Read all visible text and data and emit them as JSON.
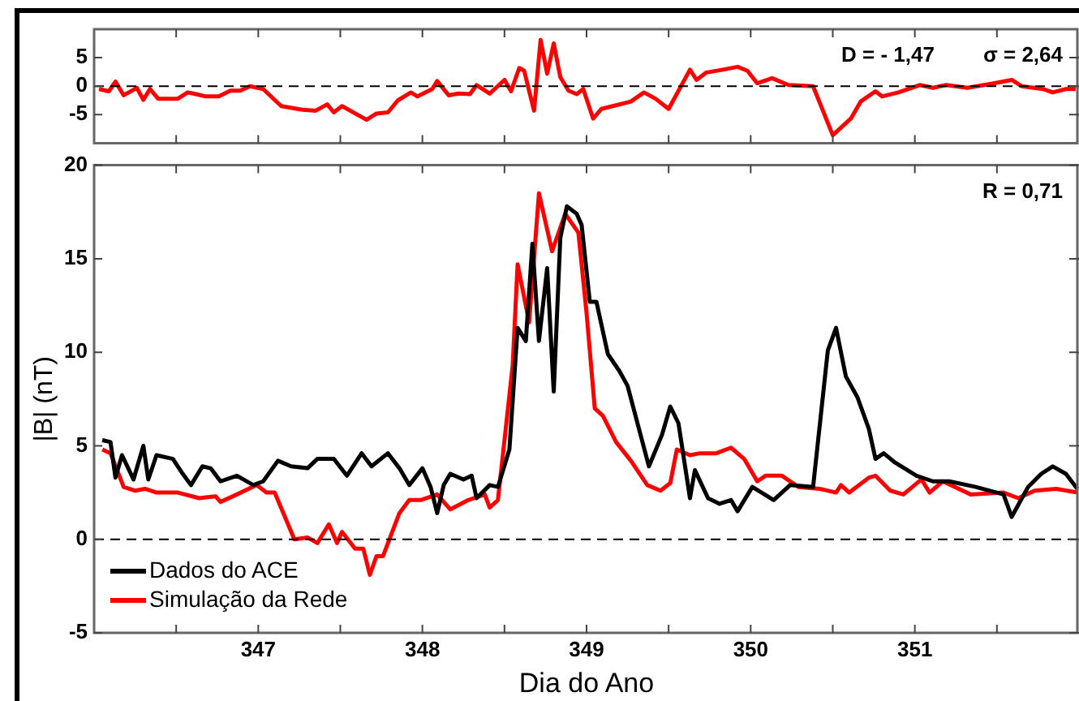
{
  "chart_data": [
    {
      "type": "line",
      "annotations": [
        "D = - 1,47",
        "σ = 2,64"
      ],
      "xlim": [
        346,
        352
      ],
      "xticks": [
        {
          "value": 346.5,
          "label": null
        },
        {
          "value": 347,
          "label": null
        },
        {
          "value": 347.5,
          "label": null
        },
        {
          "value": 348,
          "label": null
        },
        {
          "value": 348.5,
          "label": null
        },
        {
          "value": 349,
          "label": null
        },
        {
          "value": 349.5,
          "label": null
        },
        {
          "value": 350,
          "label": null
        },
        {
          "value": 350.5,
          "label": null
        },
        {
          "value": 351,
          "label": null
        },
        {
          "value": 351.5,
          "label": null
        }
      ],
      "ylim": [
        -10,
        10
      ],
      "yticks": [
        -5,
        0,
        5
      ],
      "tick_labels": "y",
      "grid": false,
      "legend": false,
      "marker": "none",
      "line_style": "solid",
      "ref_lines": [
        {
          "axis": "y",
          "value": 0,
          "color": "#000000",
          "line_style": "dashed"
        }
      ],
      "series": [
        {
          "color": "#ff0000",
          "x": [
            346.03,
            346.09,
            346.13,
            346.18,
            346.26,
            346.3,
            346.34,
            346.39,
            346.51,
            346.57,
            346.62,
            346.68,
            346.76,
            346.83,
            346.89,
            346.95,
            347.03,
            347.14,
            347.26,
            347.35,
            347.42,
            347.46,
            347.51,
            347.66,
            347.72,
            347.79,
            347.85,
            347.93,
            347.97,
            348.06,
            348.09,
            348.16,
            348.22,
            348.29,
            348.33,
            348.41,
            348.5,
            348.54,
            348.59,
            348.62,
            348.68,
            348.72,
            348.76,
            348.8,
            348.84,
            348.89,
            348.94,
            348.98,
            349.04,
            349.09,
            349.16,
            349.27,
            349.35,
            349.42,
            349.5,
            349.63,
            349.67,
            349.73,
            349.83,
            349.92,
            349.98,
            350.04,
            350.13,
            350.23,
            350.38,
            350.44,
            350.5,
            350.61,
            350.67,
            350.76,
            350.8,
            350.9,
            351.03,
            351.11,
            351.19,
            351.32,
            351.48,
            351.59,
            351.65,
            351.78,
            351.84,
            351.92,
            351.98
          ],
          "values": [
            -0.5,
            -0.9,
            0.8,
            -1.6,
            -0.3,
            -2.4,
            -0.5,
            -2.2,
            -2.2,
            -1.1,
            -1.4,
            -1.8,
            -1.8,
            -0.8,
            -0.8,
            0,
            -0.5,
            -3.5,
            -4.1,
            -4.3,
            -3.2,
            -4.6,
            -3.5,
            -5.9,
            -4.8,
            -4.6,
            -2.5,
            -1.1,
            -1.8,
            -0.5,
            0.9,
            -1.6,
            -1.3,
            -1.4,
            0.2,
            -1.3,
            1.1,
            -0.9,
            3.2,
            2.7,
            -4.3,
            8.1,
            2.2,
            7.5,
            1.6,
            -0.8,
            -1.4,
            -0.5,
            -5.7,
            -4,
            -3.5,
            -2.7,
            -1.1,
            -2.2,
            -4,
            2.9,
            1.1,
            2.4,
            2.9,
            3.4,
            2.7,
            0.5,
            1.4,
            0.2,
            0,
            -4.3,
            -8.6,
            -5.7,
            -2.7,
            -0.9,
            -1.8,
            -1.1,
            0.2,
            -0.3,
            0.2,
            -0.3,
            0.5,
            1.1,
            0,
            -0.5,
            -1.1,
            -0.5,
            -0.5
          ]
        }
      ]
    },
    {
      "type": "line",
      "xlabel": "Dia do Ano",
      "ylabel": "|B| (nT)",
      "annotations": [
        "R = 0,71"
      ],
      "xlim": [
        346,
        352
      ],
      "xticks": [
        {
          "value": 346.5,
          "label": null
        },
        347,
        {
          "value": 347.5,
          "label": null
        },
        348,
        {
          "value": 348.5,
          "label": null
        },
        349,
        {
          "value": 349.5,
          "label": null
        },
        350,
        {
          "value": 350.5,
          "label": null
        },
        351,
        {
          "value": 351.5,
          "label": null
        }
      ],
      "ylim": [
        -5,
        20
      ],
      "yticks": [
        -5,
        0,
        5,
        10,
        15,
        20
      ],
      "grid": false,
      "legend": "bottom left",
      "marker": "none",
      "line_style": "solid",
      "ref_lines": [
        {
          "axis": "y",
          "value": 0,
          "color": "#000000",
          "line_style": "dashed"
        }
      ],
      "series": [
        {
          "name": "Dados do ACE",
          "color": "#000000",
          "x": [
            346.05,
            346.1,
            346.13,
            346.17,
            346.24,
            346.3,
            346.33,
            346.38,
            346.48,
            346.54,
            346.59,
            346.66,
            346.71,
            346.77,
            346.87,
            346.97,
            347.03,
            347.12,
            347.2,
            347.3,
            347.36,
            347.46,
            347.54,
            347.63,
            347.69,
            347.79,
            347.86,
            347.92,
            348,
            348.05,
            348.09,
            348.13,
            348.17,
            348.25,
            348.3,
            348.33,
            348.41,
            348.46,
            348.53,
            348.58,
            348.63,
            348.67,
            348.71,
            348.76,
            348.8,
            348.84,
            348.88,
            348.94,
            348.97,
            349.02,
            349.06,
            349.13,
            349.2,
            349.25,
            349.38,
            349.46,
            349.51,
            349.56,
            349.63,
            349.66,
            349.74,
            349.81,
            349.88,
            349.92,
            350.01,
            350.14,
            350.24,
            350.38,
            350.47,
            350.52,
            350.58,
            350.65,
            350.72,
            350.76,
            350.81,
            350.88,
            351.01,
            351.11,
            351.21,
            351.37,
            351.54,
            351.59,
            351.69,
            351.77,
            351.84,
            351.92,
            351.99
          ],
          "values": [
            5.3,
            5.2,
            3.3,
            4.5,
            3.2,
            5,
            3.2,
            4.5,
            4.3,
            3.5,
            2.9,
            3.9,
            3.8,
            3.1,
            3.4,
            2.9,
            3.1,
            4.2,
            3.9,
            3.8,
            4.3,
            4.3,
            3.4,
            4.6,
            3.9,
            4.6,
            3.8,
            2.9,
            3.8,
            2.8,
            1.4,
            2.9,
            3.5,
            3.2,
            3.4,
            2.2,
            2.9,
            2.8,
            4.8,
            11.3,
            10.6,
            15.8,
            10.6,
            14.5,
            7.9,
            16.1,
            17.8,
            17.4,
            16.8,
            12.7,
            12.7,
            9.9,
            9,
            8.2,
            3.9,
            5.6,
            7.1,
            6.2,
            2.2,
            3.7,
            2.2,
            1.9,
            2.1,
            1.5,
            2.8,
            2.1,
            2.9,
            2.8,
            10.1,
            11.3,
            8.7,
            7.6,
            5.9,
            4.3,
            4.6,
            4.1,
            3.4,
            3.1,
            3.1,
            2.8,
            2.4,
            1.2,
            2.8,
            3.5,
            3.9,
            3.5,
            2.7
          ]
        },
        {
          "name": "Simulação da Rede",
          "color": "#ff0000",
          "x": [
            346.05,
            346.1,
            346.18,
            346.25,
            346.31,
            346.38,
            346.51,
            346.64,
            346.74,
            346.77,
            346.87,
            346.99,
            347.05,
            347.1,
            347.22,
            347.3,
            347.36,
            347.43,
            347.48,
            347.51,
            347.59,
            347.64,
            347.68,
            347.72,
            347.76,
            347.86,
            347.92,
            347.99,
            348.09,
            348.17,
            348.28,
            348.38,
            348.41,
            348.46,
            348.55,
            348.58,
            348.65,
            348.71,
            348.79,
            348.87,
            348.95,
            349,
            349.05,
            349.1,
            349.18,
            349.27,
            349.37,
            349.45,
            349.51,
            349.55,
            349.63,
            349.69,
            349.79,
            349.88,
            349.96,
            350.04,
            350.09,
            350.19,
            350.29,
            350.42,
            350.52,
            350.55,
            350.6,
            350.72,
            350.76,
            350.85,
            350.93,
            351.04,
            351.09,
            351.17,
            351.34,
            351.54,
            351.63,
            351.73,
            351.86,
            351.99
          ],
          "values": [
            4.8,
            4.6,
            2.8,
            2.6,
            2.7,
            2.5,
            2.5,
            2.2,
            2.3,
            2,
            2.4,
            2.9,
            2.5,
            2.5,
            0,
            0.1,
            -0.2,
            0.8,
            -0.2,
            0.4,
            -0.5,
            -0.5,
            -1.9,
            -0.9,
            -0.9,
            1.4,
            2.1,
            2.1,
            2.4,
            1.6,
            2.1,
            2.4,
            1.7,
            2.1,
            9.3,
            14.7,
            11.6,
            18.5,
            15.4,
            17.4,
            16.4,
            12.1,
            7,
            6.6,
            5.2,
            4.2,
            2.9,
            2.6,
            3,
            4.8,
            4.5,
            4.6,
            4.6,
            4.9,
            4.3,
            3.1,
            3.4,
            3.4,
            2.8,
            2.7,
            2.5,
            2.9,
            2.5,
            3.3,
            3.4,
            2.6,
            2.4,
            3.2,
            2.5,
            3.1,
            2.4,
            2.5,
            2.2,
            2.6,
            2.7,
            2.5
          ]
        }
      ]
    }
  ]
}
